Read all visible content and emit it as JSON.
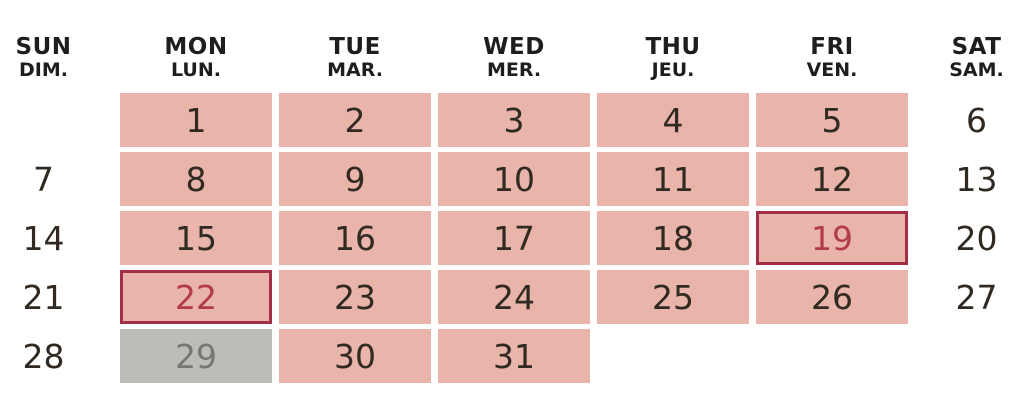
{
  "header": {
    "days": [
      {
        "en": "SUN",
        "fr": "DIM."
      },
      {
        "en": "MON",
        "fr": "LUN."
      },
      {
        "en": "TUE",
        "fr": "MAR."
      },
      {
        "en": "WED",
        "fr": "MER."
      },
      {
        "en": "THU",
        "fr": "JEU."
      },
      {
        "en": "FRI",
        "fr": "VEN."
      },
      {
        "en": "SAT",
        "fr": "SAM."
      }
    ]
  },
  "calendar": {
    "weeks": [
      [
        {
          "day": "",
          "type": "empty"
        },
        {
          "day": "1",
          "type": "work"
        },
        {
          "day": "2",
          "type": "work"
        },
        {
          "day": "3",
          "type": "work"
        },
        {
          "day": "4",
          "type": "work"
        },
        {
          "day": "5",
          "type": "work"
        },
        {
          "day": "6",
          "type": "plain"
        }
      ],
      [
        {
          "day": "7",
          "type": "plain"
        },
        {
          "day": "8",
          "type": "work"
        },
        {
          "day": "9",
          "type": "work"
        },
        {
          "day": "10",
          "type": "work"
        },
        {
          "day": "11",
          "type": "work"
        },
        {
          "day": "12",
          "type": "work"
        },
        {
          "day": "13",
          "type": "plain"
        }
      ],
      [
        {
          "day": "14",
          "type": "plain"
        },
        {
          "day": "15",
          "type": "work"
        },
        {
          "day": "16",
          "type": "work"
        },
        {
          "day": "17",
          "type": "work"
        },
        {
          "day": "18",
          "type": "work"
        },
        {
          "day": "19",
          "type": "highlight"
        },
        {
          "day": "20",
          "type": "plain"
        }
      ],
      [
        {
          "day": "21",
          "type": "plain"
        },
        {
          "day": "22",
          "type": "highlight"
        },
        {
          "day": "23",
          "type": "work"
        },
        {
          "day": "24",
          "type": "work"
        },
        {
          "day": "25",
          "type": "work"
        },
        {
          "day": "26",
          "type": "work"
        },
        {
          "day": "27",
          "type": "plain"
        }
      ],
      [
        {
          "day": "28",
          "type": "plain"
        },
        {
          "day": "29",
          "type": "gray"
        },
        {
          "day": "30",
          "type": "work"
        },
        {
          "day": "31",
          "type": "work"
        },
        {
          "day": "",
          "type": "empty"
        },
        {
          "day": "",
          "type": "empty"
        },
        {
          "day": "",
          "type": "empty"
        }
      ]
    ]
  },
  "colors": {
    "cell_pink": "#e9b4aa",
    "cell_gray": "#bdbcb6",
    "gray_text": "#787771",
    "highlight_border": "#a22f44",
    "highlight_text": "#b23b4b",
    "day_text": "#312a22",
    "header_text": "#1e1e1c"
  }
}
